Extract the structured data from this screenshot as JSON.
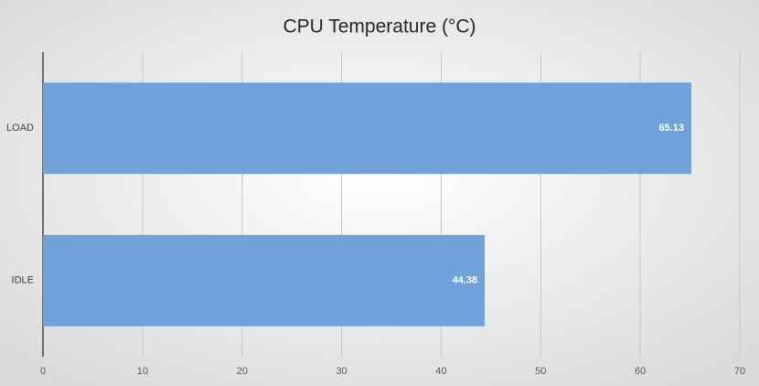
{
  "chart_data": {
    "type": "bar",
    "orientation": "horizontal",
    "title": "CPU Temperature (°C)",
    "categories": [
      "LOAD",
      "IDLE"
    ],
    "values": [
      65.13,
      44.38
    ],
    "color": "#6fa3da",
    "xlim": [
      0,
      70
    ],
    "xticks": [
      0,
      10,
      20,
      30,
      40,
      50,
      60,
      70
    ],
    "grid": true
  }
}
